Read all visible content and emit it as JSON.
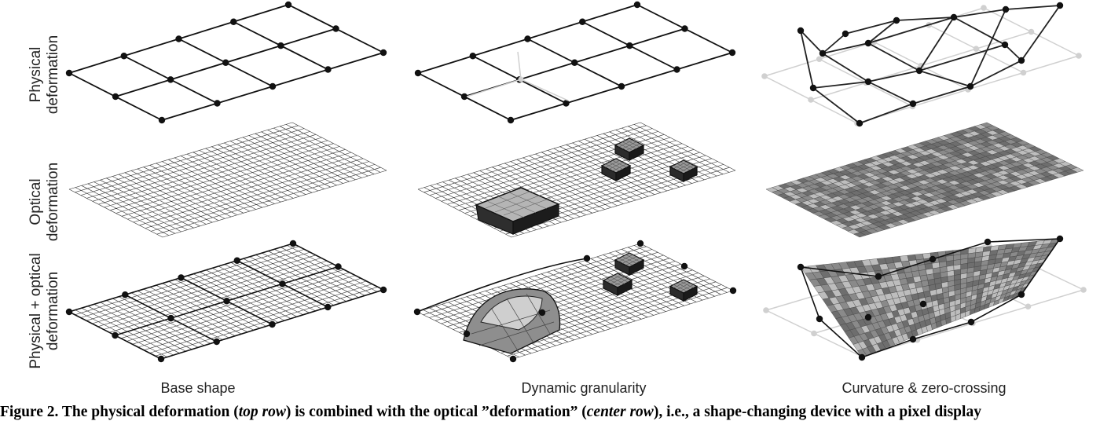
{
  "figure": {
    "row_labels": [
      {
        "line1": "Physical",
        "line2": "deformation"
      },
      {
        "line1": "Optical",
        "line2": "deformation"
      },
      {
        "line1": "Physical + optical",
        "line2": "deformation"
      }
    ],
    "column_labels": [
      "Base shape",
      "Dynamic granularity",
      "Curvature & zero-crossing"
    ]
  },
  "caption": {
    "lead": "Figure 2. The physical deformation (",
    "em1": "top row",
    "mid": ") is combined with the optical ”deformation” (",
    "em2": "center row",
    "tail": "), i.e., a shape-changing device with a pixel display"
  },
  "colors": {
    "line": "#222222",
    "node": "#111111",
    "ghost": "#d0d0d0",
    "mesh_fill": "#ffffff",
    "dark_texture": "#6e6e6e",
    "light_texture": "#bdbdbd"
  }
}
